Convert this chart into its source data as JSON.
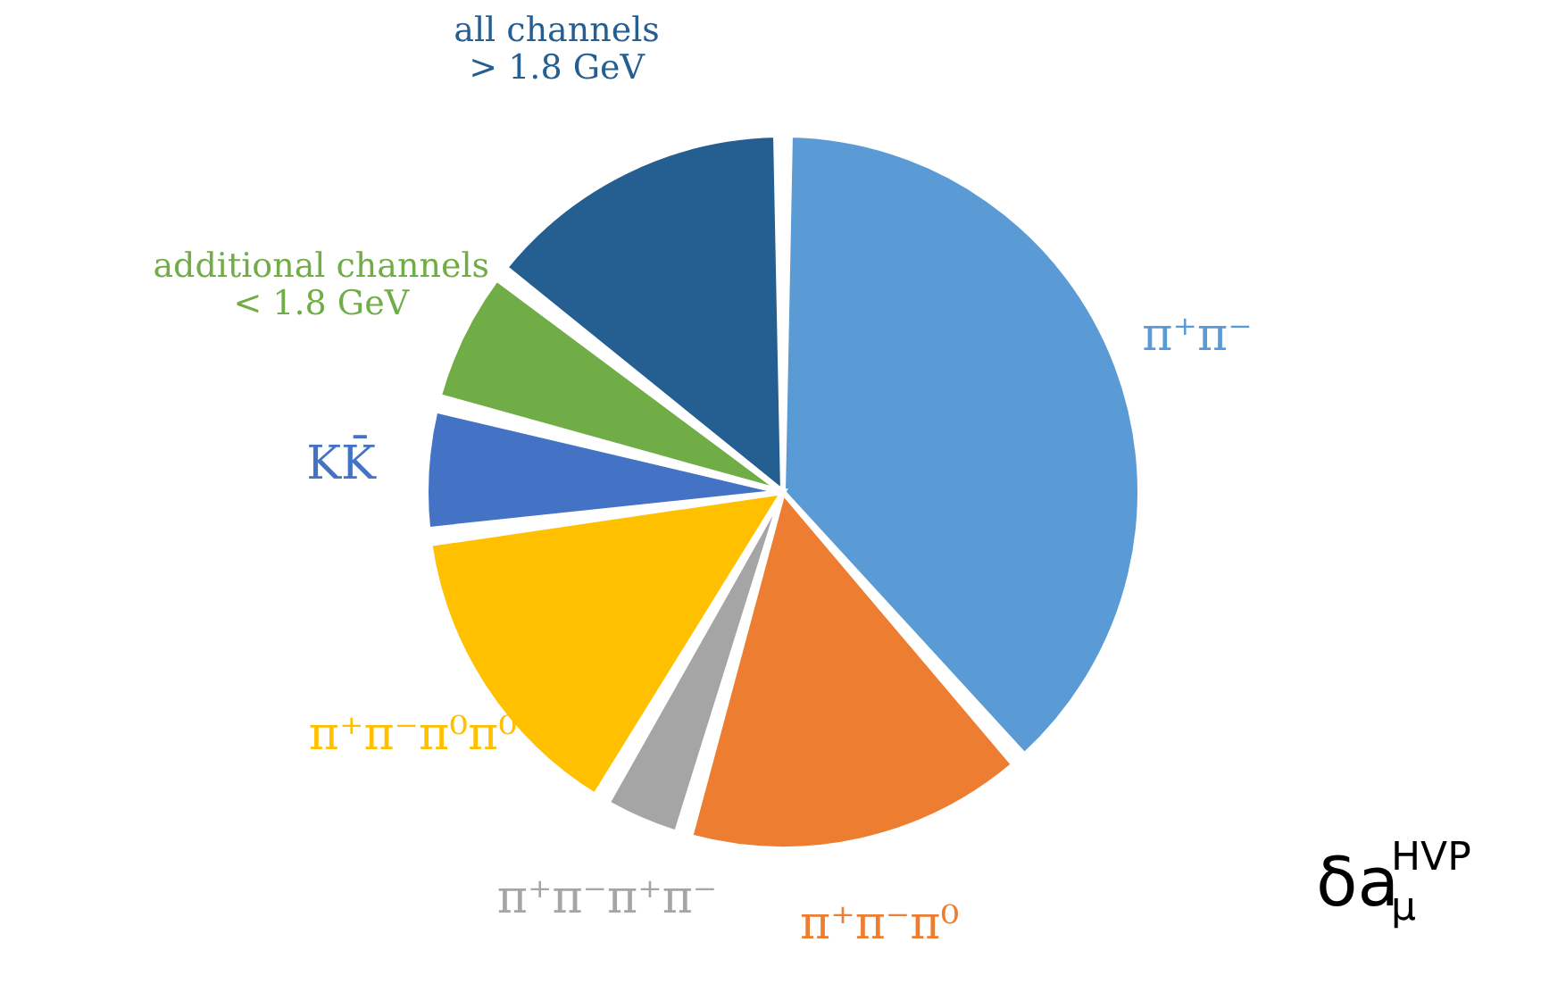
{
  "chart_data": {
    "type": "pie",
    "categories": [
      "π⁺π⁻",
      "π⁺π⁻π⁰",
      "π⁺π⁻π⁺π⁻",
      "π⁺π⁻π⁰π⁰",
      "KK̄",
      "additional channels\n< 1.8 GeV",
      "all channels\n> 1.8 GeV"
    ],
    "values": [
      38.5,
      16,
      4,
      14.5,
      6,
      6.5,
      14.5
    ],
    "colors": [
      "#5b9bd5",
      "#ed7d31",
      "#a5a5a5",
      "#ffc000",
      "#4472c4",
      "#70ad47",
      "#255e91"
    ],
    "annotations": [
      "δa$^{HVP}$$_{μ}$"
    ]
  }
}
